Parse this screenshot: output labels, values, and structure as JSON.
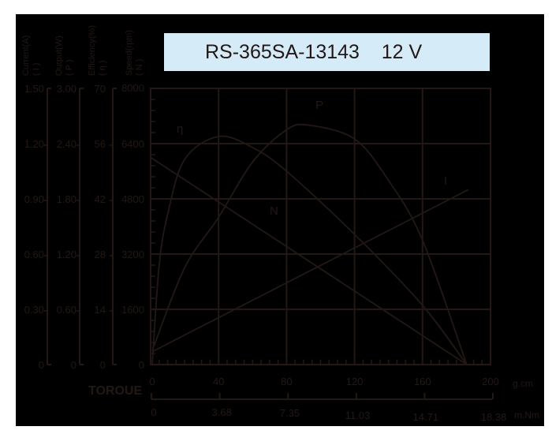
{
  "title": "RS-365SA-13143    12 V",
  "colors": {
    "background": "#000000",
    "stroke": "#231815",
    "title_box": "#d5ebf8",
    "page": "#ffffff"
  },
  "axes_headers": [
    {
      "name": "Current(A)",
      "symbol": "( I )"
    },
    {
      "name": "Output(W)",
      "symbol": "( P )"
    },
    {
      "name": "Efficiency(%)",
      "symbol": "( η )"
    },
    {
      "name": "Speed(rpm)",
      "symbol": "( N )"
    }
  ],
  "y_axes": {
    "current": [
      "0",
      "0.30",
      "0.60",
      "0.90",
      "1.20",
      "1.50"
    ],
    "output": [
      "0",
      "0.60",
      "1.20",
      "1.80",
      "2.40",
      "3.00"
    ],
    "efficiency": [
      "0",
      "14",
      "28",
      "42",
      "56",
      "70"
    ],
    "speed": [
      "0",
      "1600",
      "3200",
      "4800",
      "6400",
      "8000"
    ]
  },
  "x_axes": {
    "label": "TOROUE",
    "gcm_ticks": [
      "0",
      "40",
      "80",
      "120",
      "160",
      "200"
    ],
    "gcm_unit": "g.cm",
    "mnm_ticks": [
      "0",
      "3.68",
      "7.35",
      "11.03",
      "14.71",
      "18.38"
    ],
    "mnm_unit": "m.Nm"
  },
  "curve_labels": {
    "eta": "η",
    "P": "P",
    "N": "N",
    "I": "I"
  },
  "chart_data": {
    "type": "line",
    "title": "RS-365SA-13143 12 V",
    "xlabel": "TORQUE (g.cm / m.Nm)",
    "x_range": [
      0,
      200
    ],
    "x_secondary_ticks_mNm": [
      0,
      3.68,
      7.35,
      11.03,
      14.71,
      18.38
    ],
    "grid": true,
    "series": [
      {
        "name": "N (Speed, rpm)",
        "axis": "speed",
        "ylim": [
          0,
          8000
        ],
        "x": [
          0,
          40,
          80,
          120,
          160,
          186
        ],
        "values": [
          6000,
          4710,
          3420,
          2130,
          840,
          0
        ]
      },
      {
        "name": "I (Current, A)",
        "axis": "current",
        "ylim": [
          0,
          1.5
        ],
        "x": [
          0,
          40,
          80,
          120,
          160,
          187
        ],
        "values": [
          0.07,
          0.26,
          0.45,
          0.64,
          0.83,
          0.95
        ]
      },
      {
        "name": "P (Output, W)",
        "axis": "output",
        "ylim": [
          0,
          3.0
        ],
        "x": [
          0,
          20,
          40,
          60,
          80,
          93,
          120,
          140,
          160,
          186
        ],
        "values": [
          0.15,
          1.05,
          1.6,
          2.2,
          2.55,
          2.6,
          2.45,
          2.0,
          1.35,
          0
        ]
      },
      {
        "name": "η (Efficiency, %)",
        "axis": "efficiency",
        "ylim": [
          0,
          70
        ],
        "x": [
          0,
          5,
          10,
          20,
          40,
          60,
          80,
          120,
          160,
          186
        ],
        "values": [
          0,
          25,
          38,
          52,
          57.8,
          55,
          49,
          33,
          15,
          0
        ]
      }
    ]
  }
}
